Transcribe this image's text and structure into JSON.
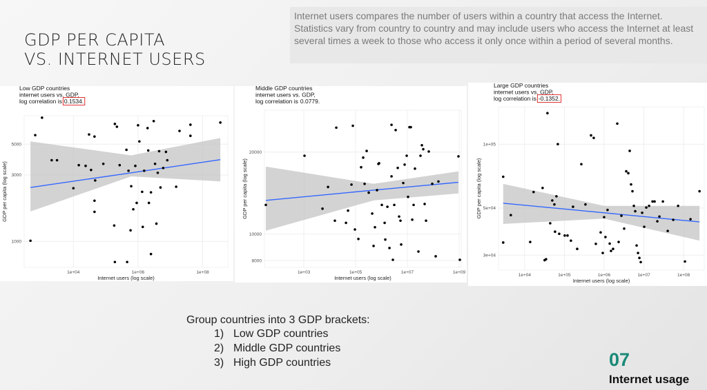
{
  "heading": [
    "GDP PER CAPITA",
    "VS. INTERNET USERS"
  ],
  "description": "Internet users compares the number of users within a country that access the Internet. Statistics vary from country to country and may include users who access the Internet at least several times a week to those who access it only once within a period of several months.",
  "list": {
    "intro": "Group countries into 3 GDP brackets:",
    "items": [
      {
        "num": "1)",
        "text": "Low GDP countries"
      },
      {
        "num": "2)",
        "text": "Middle GDP countries"
      },
      {
        "num": "3)",
        "text": "High GDP countries"
      }
    ]
  },
  "section": {
    "number": "07",
    "label": "Internet usage"
  },
  "chart_data": [
    {
      "type": "scatter",
      "title": [
        "Low GDP countries",
        "internet users vs. GDP,"
      ],
      "subtitle": "log correlation is",
      "correlation": "0.1534.",
      "highlight_color": "#e03030",
      "x_label": "Internet users (log scale)",
      "y_label": "GDP per capita (log scale)",
      "xscale": "log",
      "yscale": "log",
      "grid": true,
      "color": "#000000",
      "xlim": [
        300,
        600000000
      ],
      "xticks": [
        {
          "value": 10000,
          "label": "1e+04"
        },
        {
          "value": 1000000,
          "label": "1e+06"
        },
        {
          "value": 100000000,
          "label": "1e+08"
        }
      ],
      "ylim": [
        650,
        8000
      ],
      "yticks": [
        1000,
        3000,
        5000
      ],
      "x": [
        470,
        660,
        1070,
        2130,
        3120,
        10000,
        14700,
        23900,
        30500,
        35200,
        45000,
        47200,
        45000,
        45000,
        84300,
        183000,
        192000,
        222000,
        192000,
        460000,
        270000,
        438000,
        507000,
        615000,
        712000,
        587000,
        824000,
        908000,
        1000000,
        1100000,
        1340000,
        1400000,
        1550000,
        1970000,
        2070000,
        2170000,
        2510000,
        3050000,
        3360000,
        3700000,
        4070000,
        4500000,
        4950000,
        6010000,
        7300000,
        8030000,
        2510000,
        15100000,
        19200000,
        41800000,
        41800000,
        352000000
      ],
      "values": [
        1010,
        5800,
        7750,
        3830,
        3830,
        2410,
        3530,
        3490,
        5870,
        3260,
        5670,
        2740,
        1960,
        1630,
        3610,
        1300,
        6990,
        6670,
        710,
        710,
        3530,
        4550,
        3220,
        2490,
        1700,
        1200,
        3490,
        1890,
        6830,
        5230,
        2270,
        1270,
        3220,
        6520,
        4500,
        1890,
        2250,
        7320,
        3610,
        1340,
        3110,
        4450,
        2440,
        3370,
        4400,
        3830,
        810,
        2470,
        6220,
        6900,
        5740,
        7150
      ],
      "fit": {
        "color": "#3366ff",
        "band_color": "#c4c4c4",
        "x": [
          470,
          615000,
          352000000
        ],
        "values": [
          2440,
          3110,
          3870
        ],
        "lower": [
          1640,
          2930,
          2700
        ],
        "upper": [
          5230,
          4150,
          5540
        ]
      }
    },
    {
      "type": "scatter",
      "title": [
        "Middle GDP countries",
        "internet users vs. GDP,"
      ],
      "subtitle": "log correlation is",
      "correlation": "0.0779.",
      "x_label": "Internet users (log scale)",
      "y_label": "GDP per capita (log scale)",
      "xscale": "log",
      "yscale": "log",
      "grid": true,
      "color": "#000000",
      "xlim": [
        30,
        1200000000
      ],
      "xticks": [
        {
          "value": 1000,
          "label": "1e+03"
        },
        {
          "value": 100000,
          "label": "1e+05"
        },
        {
          "value": 10000000,
          "label": "1e+07"
        },
        {
          "value": 1000000000,
          "label": "1e+09"
        }
      ],
      "ylim": [
        7550,
        28500
      ],
      "yticks": [
        8000,
        10000,
        20000
      ],
      "x": [
        34,
        1060,
        5250,
        8580,
        15800,
        17900,
        42400,
        50900,
        69200,
        78200,
        94000,
        128000,
        163000,
        196000,
        222000,
        267000,
        321000,
        437000,
        494000,
        558000,
        671000,
        759000,
        807000,
        1030000,
        1320000,
        1400000,
        1690000,
        2030000,
        2440000,
        2440000,
        2750000,
        3110000,
        3520000,
        4240000,
        4790000,
        5410000,
        5750000,
        6920000,
        7820000,
        9400000,
        10600000,
        12000000,
        13600000,
        15400000,
        17400000,
        19600000,
        26700000,
        32100000,
        36300000,
        41000000,
        46400000,
        52500000,
        67100000,
        91200000,
        124000000,
        158000000,
        940000000,
        1060000000
      ],
      "values": [
        12800,
        19400,
        12400,
        14900,
        11200,
        24600,
        11000,
        12200,
        15200,
        25000,
        10400,
        9600,
        17600,
        19100,
        15300,
        20200,
        14200,
        11900,
        9050,
        10600,
        14500,
        18100,
        18200,
        12800,
        11000,
        9550,
        12600,
        8890,
        25200,
        16300,
        8050,
        12800,
        24100,
        17500,
        11600,
        11200,
        9160,
        15400,
        18000,
        19400,
        13700,
        24700,
        24700,
        11300,
        12800,
        17400,
        8630,
        19400,
        21200,
        20500,
        12900,
        11200,
        20100,
        15300,
        8290,
        15600,
        19300,
        8050
      ],
      "fit": {
        "color": "#3366ff",
        "band_color": "#c4c4c4",
        "x": [
          34,
          494000,
          940000000
        ],
        "values": [
          13300,
          14500,
          15500
        ],
        "lower": [
          10300,
          13300,
          14100
        ],
        "upper": [
          17700,
          15300,
          17000
        ]
      }
    },
    {
      "type": "scatter",
      "title": [
        "Large GDP countries",
        "internet users vs. GDP,"
      ],
      "subtitle": "log correlation is",
      "correlation": "-0.1352.",
      "highlight_color": "#e03030",
      "x_label": "Internet users (log scale)",
      "y_label": "GDP per capita (log scale)",
      "xscale": "log",
      "yscale": "log",
      "grid": true,
      "color": "#000000",
      "xlim": [
        2200,
        330000000
      ],
      "xticks": [
        {
          "value": 10000,
          "label": "1e+04"
        },
        {
          "value": 100000,
          "label": "1e+05"
        },
        {
          "value": 1000000,
          "label": "1e+06"
        },
        {
          "value": 10000000,
          "label": "1e+07"
        },
        {
          "value": 100000000,
          "label": "1e+08"
        }
      ],
      "ylim": [
        25500,
        150000
      ],
      "yticks": [
        {
          "value": 30000,
          "label": "3e+04"
        },
        {
          "value": 50000,
          "label": "5e+04"
        },
        {
          "value": 100000,
          "label": "1e+05"
        }
      ],
      "x": [
        2890,
        2890,
        4490,
        13800,
        16800,
        28300,
        31900,
        34600,
        37500,
        44000,
        49600,
        56000,
        58200,
        63100,
        68400,
        74100,
        102000,
        120000,
        146000,
        165000,
        210000,
        267000,
        339000,
        468000,
        548000,
        618000,
        818000,
        923000,
        1000000,
        1080000,
        1220000,
        1380000,
        1490000,
        1680000,
        2140000,
        2320000,
        2720000,
        3190000,
        3600000,
        4060000,
        4400000,
        4760000,
        5160000,
        5600000,
        6060000,
        6570000,
        7120000,
        7710000,
        8350000,
        9050000,
        10200000,
        11500000,
        13500000,
        16500000,
        18600000,
        21800000,
        24600000,
        30100000,
        39800000,
        54800000,
        72600000,
        108000000,
        149000000,
        251000000
      ],
      "values": [
        70200,
        34400,
        46300,
        34600,
        59500,
        62200,
        28400,
        28700,
        140000,
        42400,
        54300,
        52000,
        38700,
        56800,
        100000,
        37800,
        37100,
        37100,
        35100,
        50700,
        32100,
        80500,
        52000,
        110000,
        107000,
        33900,
        38400,
        30700,
        45300,
        36500,
        49000,
        34000,
        31400,
        32100,
        125000,
        34600,
        46000,
        40000,
        74500,
        73000,
        93000,
        64600,
        60000,
        51200,
        48300,
        33300,
        30700,
        29100,
        27800,
        47500,
        40800,
        50300,
        51200,
        53700,
        53700,
        43300,
        45600,
        53700,
        39000,
        44000,
        51200,
        28000,
        44300,
        60000
      ],
      "fit": {
        "color": "#3366ff",
        "band_color": "#c4c4c4",
        "x": [
          2890,
          1000000,
          251000000
        ],
        "values": [
          52700,
          47500,
          43000
        ],
        "lower": [
          42100,
          44600,
          35100
        ],
        "upper": [
          65000,
          51200,
          51200
        ]
      }
    }
  ]
}
